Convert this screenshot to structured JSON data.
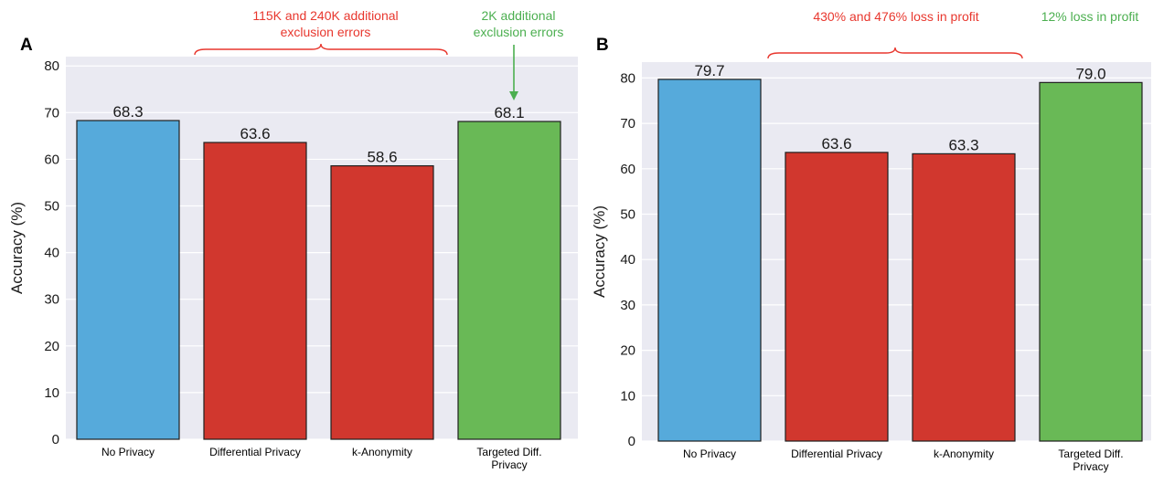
{
  "chart_data": [
    {
      "panel": "A",
      "type": "bar",
      "categories": [
        [
          "No Privacy"
        ],
        [
          "Differential Privacy"
        ],
        [
          "k-Anonymity"
        ],
        [
          "Targeted Diff.",
          "Privacy"
        ]
      ],
      "values": [
        68.3,
        63.6,
        58.6,
        68.1
      ],
      "value_labels": [
        "68.3",
        "63.6",
        "58.6",
        "68.1"
      ],
      "colors": [
        "#56aadb",
        "#d1372e",
        "#d1372e",
        "#69b956"
      ],
      "ylabel": "Accuracy (%)",
      "ylim": [
        0,
        82
      ],
      "yticks": [
        0,
        10,
        20,
        30,
        40,
        50,
        60,
        70,
        80
      ],
      "grid": true,
      "background": "#eaeaf2",
      "annotations": [
        {
          "lines": [
            "115K and 240K additional",
            "exclusion errors"
          ],
          "color": "#e8372e",
          "marker": "brace",
          "bars": [
            1,
            2
          ]
        },
        {
          "lines": [
            "2K additional",
            "exclusion errors"
          ],
          "color": "#4caf50",
          "marker": "arrow",
          "bars": [
            3
          ]
        }
      ]
    },
    {
      "panel": "B",
      "type": "bar",
      "categories": [
        [
          "No Privacy"
        ],
        [
          "Differential Privacy"
        ],
        [
          "k-Anonymity"
        ],
        [
          "Targeted Diff.",
          "Privacy"
        ]
      ],
      "values": [
        79.7,
        63.6,
        63.3,
        79.0
      ],
      "value_labels": [
        "79.7",
        "63.6",
        "63.3",
        "79.0"
      ],
      "colors": [
        "#56aadb",
        "#d1372e",
        "#d1372e",
        "#69b956"
      ],
      "ylabel": "Accuracy (%)",
      "ylim": [
        0,
        83.5
      ],
      "yticks": [
        0,
        10,
        20,
        30,
        40,
        50,
        60,
        70,
        80
      ],
      "grid": true,
      "background": "#eaeaf2",
      "annotations": [
        {
          "lines": [
            "430% and 476% loss in profit"
          ],
          "color": "#e8372e",
          "marker": "brace",
          "bars": [
            1,
            2
          ]
        },
        {
          "lines": [
            "12% loss in profit"
          ],
          "color": "#4caf50",
          "marker": "none",
          "bars": [
            3
          ]
        }
      ]
    }
  ]
}
